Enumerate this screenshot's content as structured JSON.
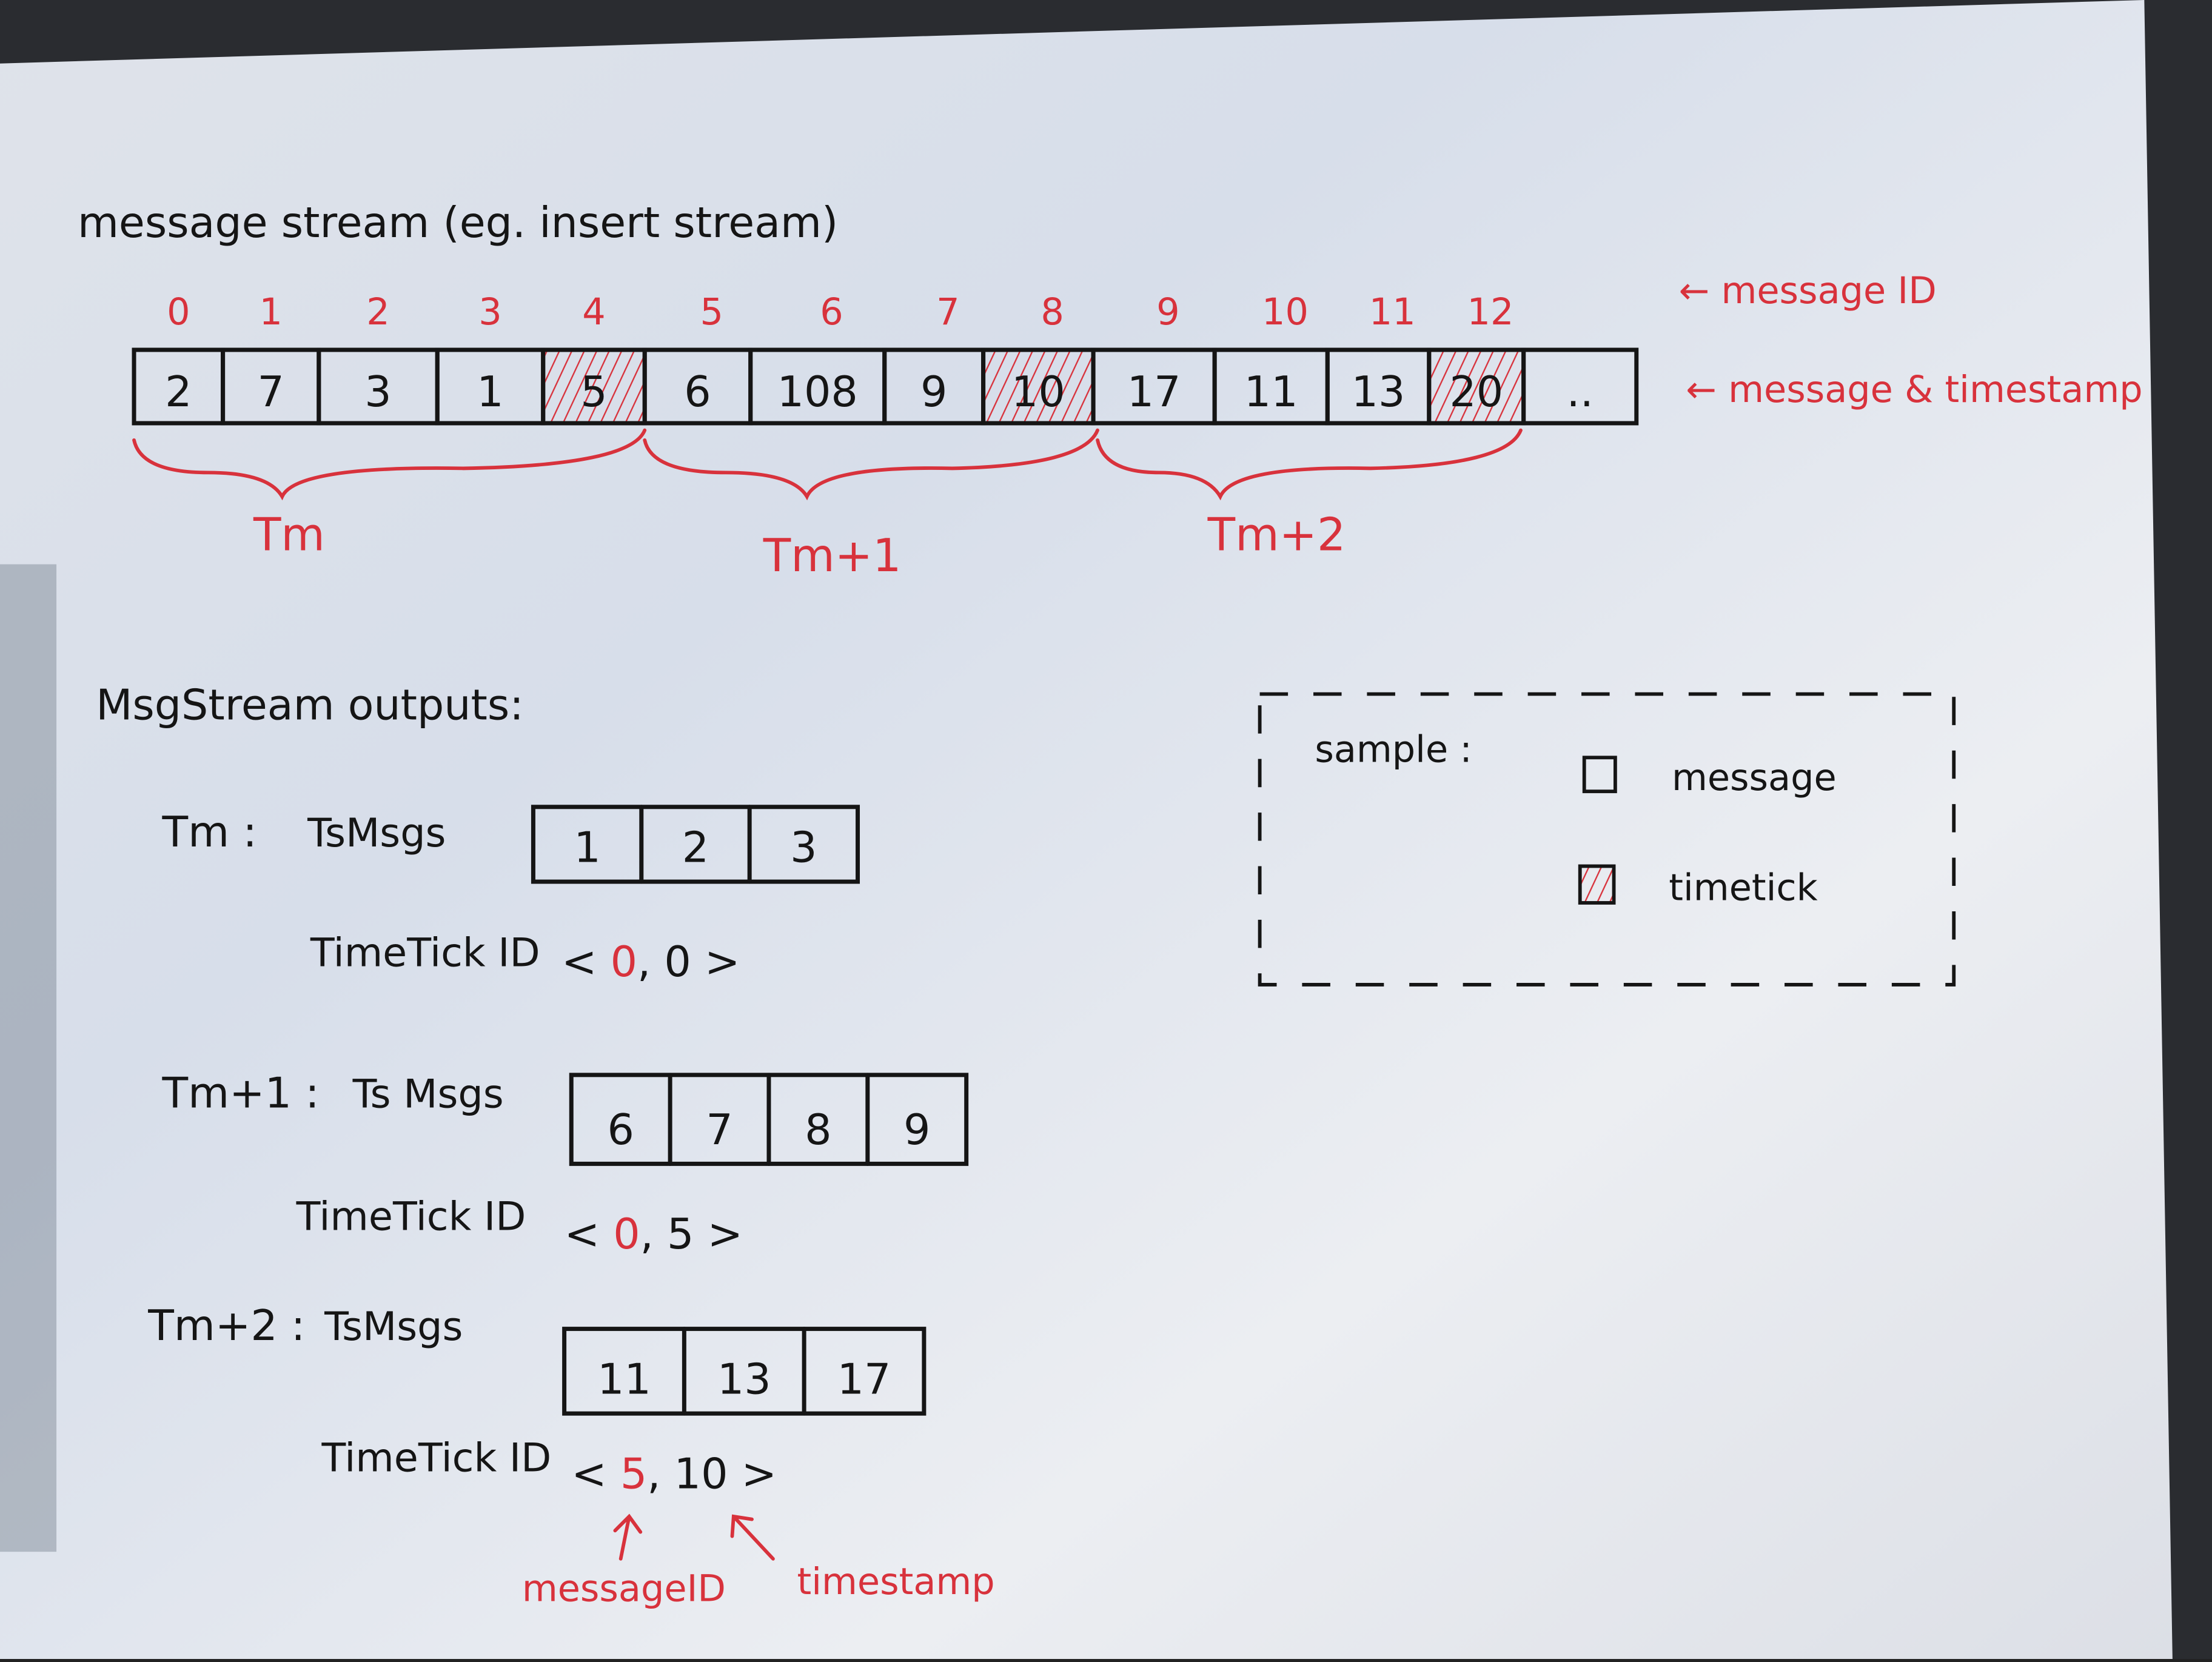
{
  "title": "message stream (eg. insert stream)",
  "annotations": {
    "message_id": "← message ID",
    "message_timestamp": "← message & timestamp"
  },
  "stream": {
    "message_ids": [
      "0",
      "1",
      "2",
      "3",
      "4",
      "5",
      "6",
      "7",
      "8",
      "9",
      "10",
      "11",
      "12"
    ],
    "timestamps": [
      "2",
      "7",
      "3",
      "1",
      "5",
      "6",
      "108",
      "9",
      "10",
      "17",
      "11",
      "13",
      "20",
      ".."
    ],
    "timetick_indices": [
      4,
      8,
      12
    ]
  },
  "groups": [
    {
      "label": "Tm"
    },
    {
      "label": "Tm+1"
    },
    {
      "label": "Tm+2"
    }
  ],
  "outputs": {
    "heading": "MsgStream outputs:",
    "items": [
      {
        "label": "Tm :",
        "msgs_label": "TsMsgs",
        "msgs": [
          "1",
          "2",
          "3"
        ],
        "tick_label": "TimeTick ID",
        "tick_id": "0",
        "tick_ts": "0"
      },
      {
        "label": "Tm+1 :",
        "msgs_label": "Ts Msgs",
        "msgs": [
          "6",
          "7",
          "8",
          "9"
        ],
        "tick_label": "TimeTick ID",
        "tick_id": "0",
        "tick_ts": "5"
      },
      {
        "label": "Tm+2 :",
        "msgs_label": "TsMsgs",
        "msgs": [
          "11",
          "13",
          "17"
        ],
        "tick_label": "TimeTick ID",
        "tick_id": "5",
        "tick_ts": "10"
      }
    ],
    "pointer_labels": {
      "id": "messageID",
      "ts": "timestamp"
    }
  },
  "legend": {
    "title": "sample :",
    "items": [
      {
        "label": "message",
        "type": "message"
      },
      {
        "label": "timetick",
        "type": "timetick"
      }
    ]
  },
  "colors": {
    "ink": "#151515",
    "red_pen": "#d8323c",
    "paper": "#e9ecf2"
  }
}
